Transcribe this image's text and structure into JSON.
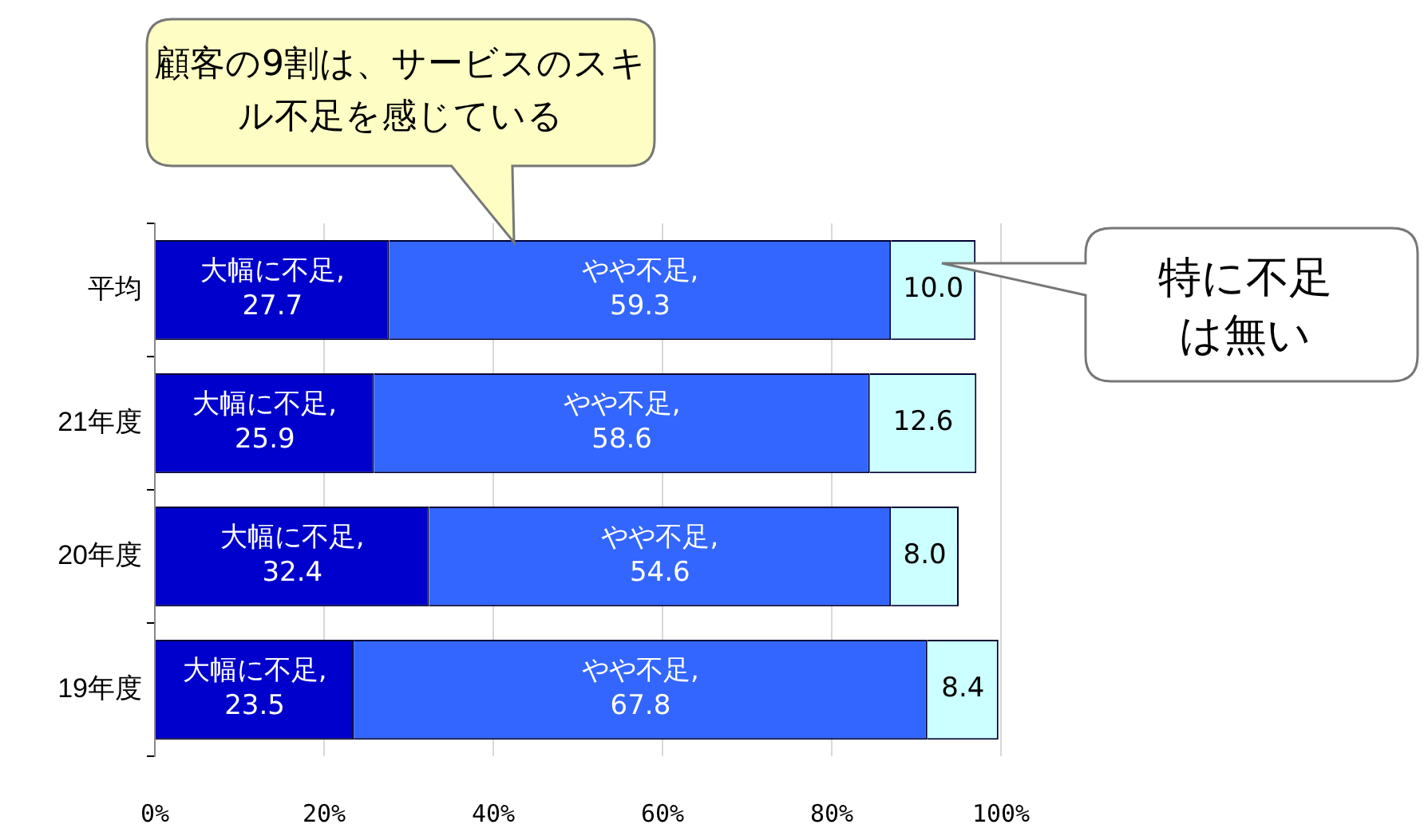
{
  "chart_data": {
    "type": "bar",
    "orientation": "horizontal",
    "stacked": true,
    "categories": [
      "平均",
      "21年度",
      "20年度",
      "19年度"
    ],
    "series": [
      {
        "name": "大幅に不足,",
        "color": "#0000cc",
        "values": [
          27.7,
          25.9,
          32.4,
          23.5
        ],
        "value_labels": [
          "27.7",
          "25.9",
          "32.4",
          "23.5"
        ]
      },
      {
        "name": "やや不足,",
        "color": "#3366ff",
        "values": [
          59.3,
          58.6,
          54.6,
          67.8
        ],
        "value_labels": [
          "59.3",
          "58.6",
          "54.6",
          "67.8"
        ]
      },
      {
        "color": "#ccffff",
        "values": [
          10.0,
          12.6,
          8.0,
          8.4
        ],
        "value_labels": [
          "10.0",
          "12.6",
          "8.0",
          "8.4"
        ]
      }
    ],
    "xlim": [
      0,
      100
    ],
    "xticks": [
      {
        "value": 0,
        "label": "0%"
      },
      {
        "value": 20,
        "label": "20%"
      },
      {
        "value": 40,
        "label": "40%"
      },
      {
        "value": 60,
        "label": "60%"
      },
      {
        "value": 80,
        "label": "80%"
      },
      {
        "value": 100,
        "label": "100%"
      }
    ],
    "grid": "x",
    "legend": false,
    "annotations": [
      "顧客の9割は、サービスのスキル不足を感じている",
      "特に不足は無い"
    ]
  }
}
